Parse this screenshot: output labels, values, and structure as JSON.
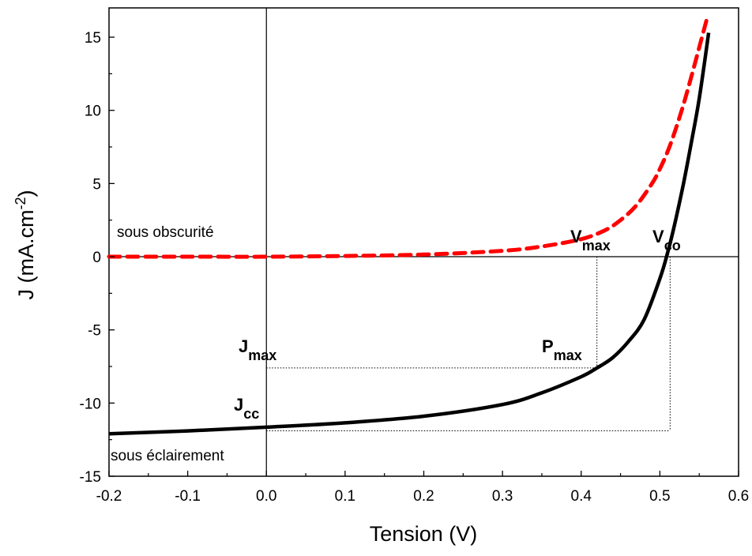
{
  "chart_data": {
    "type": "line",
    "xlabel": "Tension (V)",
    "ylabel": "J (mA.cm",
    "ylabel_sup": "-2",
    "ylabel_end": ")",
    "xlim": [
      -0.2,
      0.6
    ],
    "ylim": [
      -15,
      17
    ],
    "x_ticks": [
      -0.2,
      -0.1,
      0.0,
      0.1,
      0.2,
      0.3,
      0.4,
      0.5,
      0.6
    ],
    "x_tick_labels": [
      "-0.2",
      "-0.1",
      "0.0",
      "0.1",
      "0.2",
      "0.3",
      "0.4",
      "0.5",
      "0.6"
    ],
    "y_ticks": [
      -15,
      -10,
      -5,
      0,
      5,
      10,
      15
    ],
    "y_tick_labels": [
      "-15",
      "-10",
      "-5",
      "0",
      "5",
      "10",
      "15"
    ],
    "grid": false,
    "reference_lines": {
      "x": 0,
      "y": 0
    },
    "series": [
      {
        "name": "sous obscurité",
        "color": "#ff0000",
        "style": "dashed",
        "x": [
          -0.2,
          -0.1,
          0.0,
          0.1,
          0.2,
          0.3,
          0.35,
          0.4,
          0.43,
          0.45,
          0.47,
          0.49,
          0.5,
          0.51,
          0.52,
          0.53,
          0.54,
          0.55,
          0.56
        ],
        "y": [
          0.0,
          0.0,
          0.0,
          0.05,
          0.15,
          0.4,
          0.7,
          1.2,
          1.8,
          2.5,
          3.5,
          5.0,
          6.0,
          7.2,
          8.7,
          10.4,
          12.3,
          14.3,
          16.3
        ]
      },
      {
        "name": "sous éclairement",
        "color": "#000000",
        "style": "solid",
        "x": [
          -0.2,
          -0.1,
          0.0,
          0.1,
          0.2,
          0.3,
          0.35,
          0.4,
          0.42,
          0.44,
          0.46,
          0.48,
          0.5,
          0.51,
          0.52,
          0.53,
          0.54,
          0.55,
          0.562
        ],
        "y": [
          -12.1,
          -11.9,
          -11.65,
          -11.35,
          -10.9,
          -10.1,
          -9.3,
          -8.2,
          -7.6,
          -6.9,
          -5.8,
          -4.3,
          -1.5,
          0.3,
          2.5,
          5.0,
          7.8,
          10.8,
          15.3
        ]
      }
    ],
    "annotations": {
      "dark_label": "sous obscurité",
      "light_label": "sous éclairement",
      "vmax_main": "V",
      "vmax_sub": "max",
      "vco_main": "V",
      "vco_sub": "co",
      "jmax_main": "J",
      "jmax_sub": "max",
      "pmax_main": "P",
      "pmax_sub": "max",
      "jcc_main": "J",
      "jcc_sub": "cc"
    },
    "markers": {
      "vmax": 0.42,
      "jmax": -7.6,
      "vco": 0.513,
      "jcc": -11.9
    }
  }
}
